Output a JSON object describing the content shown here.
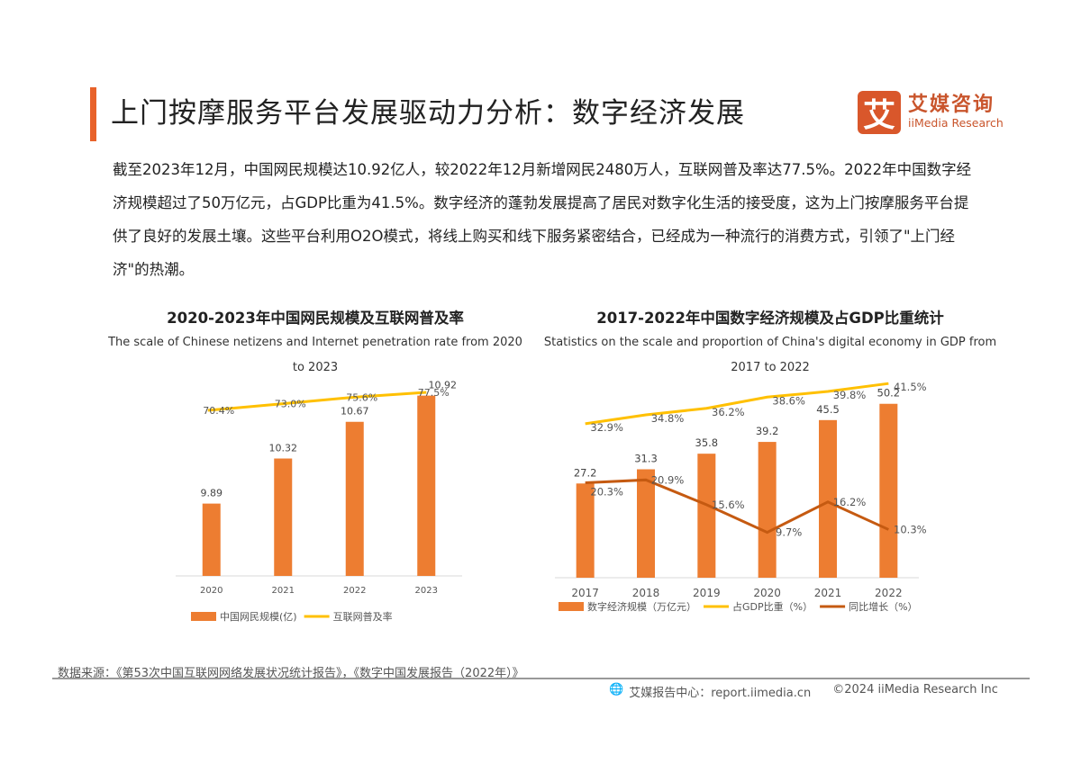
{
  "header": {
    "title": "上门按摩服务平台发展驱动力分析：数字经济发展",
    "accent_color": "#e8622a"
  },
  "logo": {
    "mark": "艾",
    "name_cn": "艾媒咨询",
    "name_en": "iiMedia Research",
    "color": "#d9572b"
  },
  "paragraph": "截至2023年12月，中国网民规模达10.92亿人，较2022年12月新增网民2480万人，互联网普及率达77.5%。2022年中国数字经济规模超过了50万亿元，占GDP比重为41.5%。数字经济的蓬勃发展提高了居民对数字化生活的接受度，这为上门按摩服务平台提供了良好的发展土壤。这些平台利用O2O模式，将线上购买和线下服务紧密结合，已经成为一种流行的消费方式，引领了\"上门经济\"的热潮。",
  "chart_data": [
    {
      "type": "bar+line",
      "title": "2020-2023年中国网民规模及互联网普及率",
      "subtitle": "The scale of Chinese netizens and Internet penetration rate from 2020 to 2023",
      "categories": [
        "2020",
        "2021",
        "2022",
        "2023"
      ],
      "series": [
        {
          "name": "中国网民规模(亿)",
          "type": "bar",
          "color": "#ed7d31",
          "values": [
            9.89,
            10.32,
            10.67,
            10.92
          ],
          "labels": [
            "9.89",
            "10.32",
            "10.67",
            "10.92"
          ]
        },
        {
          "name": "互联网普及率",
          "type": "line",
          "color": "#ffc000",
          "values": [
            70.4,
            73.0,
            75.6,
            77.5
          ],
          "labels": [
            "70.4%",
            "73.0%",
            "75.6%",
            "77.5%"
          ]
        }
      ],
      "legend": "bottom",
      "grid": false
    },
    {
      "type": "bar+line",
      "title": "2017-2022年中国数字经济规模及占GDP比重统计",
      "subtitle": "Statistics on the scale and proportion of China's digital economy in GDP from 2017 to 2022",
      "categories": [
        "2017",
        "2018",
        "2019",
        "2020",
        "2021",
        "2022"
      ],
      "series": [
        {
          "name": "数字经济规模（万亿元）",
          "type": "bar",
          "color": "#ed7d31",
          "values": [
            27.2,
            31.3,
            35.8,
            39.2,
            45.5,
            50.2
          ],
          "labels": [
            "27.2",
            "31.3",
            "35.8",
            "39.2",
            "45.5",
            "50.2"
          ]
        },
        {
          "name": "占GDP比重（%）",
          "type": "line",
          "color": "#ffc000",
          "values": [
            32.9,
            34.8,
            36.2,
            38.6,
            39.8,
            41.5
          ],
          "labels": [
            "32.9%",
            "34.8%",
            "36.2%",
            "38.6%",
            "39.8%",
            "41.5%"
          ]
        },
        {
          "name": "同比增长（%）",
          "type": "line",
          "color": "#c55a11",
          "values": [
            20.3,
            20.9,
            15.6,
            9.7,
            16.2,
            10.3
          ],
          "labels": [
            "20.3%",
            "20.9%",
            "15.6%",
            "9.7%",
            "16.2%",
            "10.3%"
          ]
        }
      ],
      "legend": "bottom",
      "grid": false
    }
  ],
  "source": "数据来源：《第53次中国互联网网络发展状况统计报告》，《数字中国发展报告（2022年）》",
  "footer": {
    "icon": "globe-icon",
    "site": "艾媒报告中心：report.iimedia.cn",
    "copyright": "©2024  iiMedia Research  Inc"
  }
}
